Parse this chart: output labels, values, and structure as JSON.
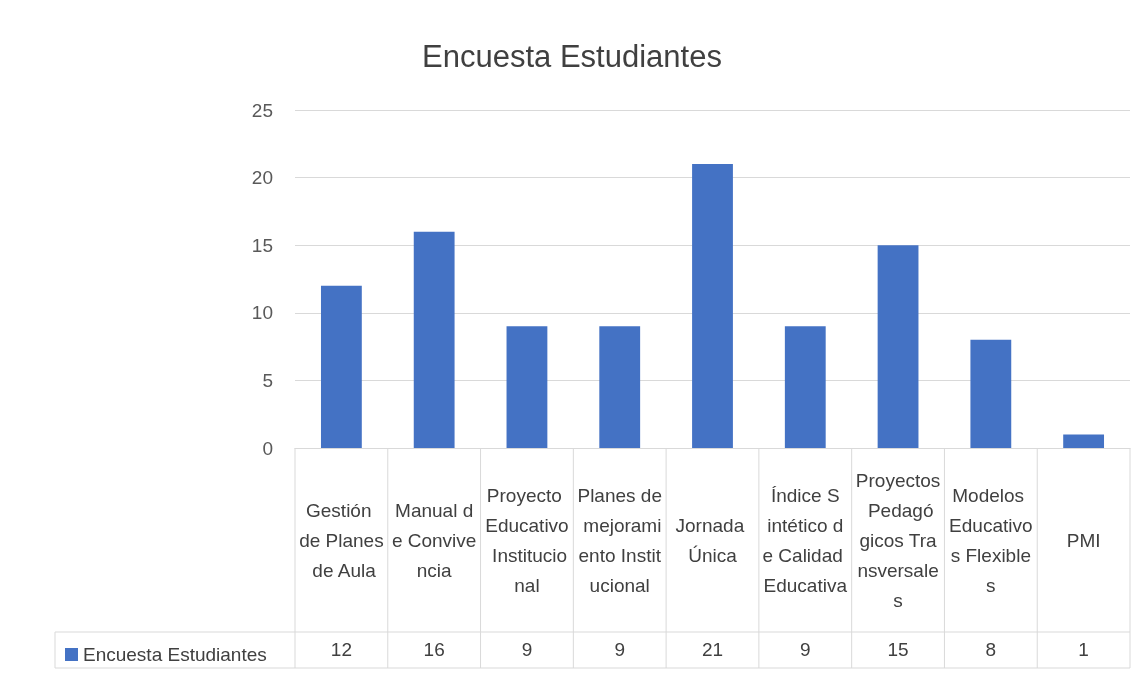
{
  "chart_data": {
    "type": "bar",
    "title": "Encuesta Estudiantes",
    "categories": [
      "Gestión de Planes de Aula",
      "Manual de Convivencia",
      "Proyecto Educativo Institucional",
      "Planes de mejoramiento Institucional",
      "Jornada Única",
      "Índice Sintético de Calidad Educativa",
      "Proyectos Pedagógicos Transversales",
      "Modelos Educativos Flexibles",
      "PMI"
    ],
    "series": [
      {
        "name": "Encuesta Estudiantes",
        "color": "#4472c4",
        "values": [
          12,
          16,
          9,
          9,
          21,
          9,
          15,
          8,
          1
        ]
      }
    ],
    "ylim": [
      0,
      25
    ],
    "yticks": [
      0,
      5,
      10,
      15,
      20,
      25
    ],
    "grid": "y",
    "legend": "bottom left",
    "data_labels": true
  }
}
